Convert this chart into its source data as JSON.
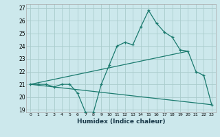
{
  "title": "",
  "xlabel": "Humidex (Indice chaleur)",
  "bg_color": "#cce8ec",
  "grid_color": "#aacccc",
  "line_color": "#1a7a6e",
  "xlim": [
    -0.5,
    23.5
  ],
  "ylim": [
    18.8,
    27.3
  ],
  "xticks": [
    0,
    1,
    2,
    3,
    4,
    5,
    6,
    7,
    8,
    9,
    10,
    11,
    12,
    13,
    14,
    15,
    16,
    17,
    18,
    19,
    20,
    21,
    22,
    23
  ],
  "yticks": [
    19,
    20,
    21,
    22,
    23,
    24,
    25,
    26,
    27
  ],
  "line1_x": [
    0,
    1,
    2,
    3,
    4,
    5,
    6,
    7,
    8,
    9,
    10,
    11,
    12,
    13,
    14,
    15,
    16,
    17,
    18,
    19,
    20,
    21,
    22,
    23
  ],
  "line1_y": [
    21.0,
    21.0,
    21.0,
    20.8,
    21.0,
    21.0,
    20.3,
    18.8,
    18.8,
    21.0,
    22.5,
    24.0,
    24.3,
    24.1,
    25.5,
    26.8,
    25.8,
    25.1,
    24.7,
    23.7,
    23.6,
    22.0,
    21.7,
    19.4
  ],
  "line2_x": [
    0,
    20
  ],
  "line2_y": [
    21.0,
    23.6
  ],
  "line3_x": [
    0,
    23
  ],
  "line3_y": [
    21.0,
    19.4
  ]
}
